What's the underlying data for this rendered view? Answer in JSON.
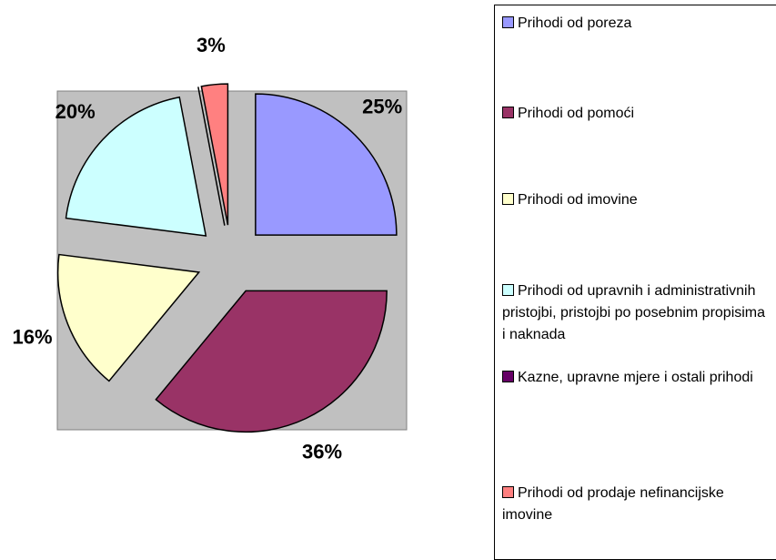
{
  "chart_data": {
    "type": "pie",
    "categories": [
      "Prihodi od poreza",
      "Prihodi od pomoći",
      "Prihodi od imovine",
      "Prihodi od upravnih i administrativnih pristojbi, pristojbi po posebnim propisima i naknada",
      "Kazne, upravne mjere i ostali prihodi",
      "Prihodi od prodaje nefinancijske imovine"
    ],
    "values": [
      25,
      36,
      16,
      20,
      0,
      3
    ],
    "value_labels": [
      "25%",
      "36%",
      "16%",
      "20%",
      null,
      "3%"
    ],
    "colors": [
      "#9999ff",
      "#993366",
      "#ffffcc",
      "#ccffff",
      "#660066",
      "#ff8080"
    ],
    "legend": "right"
  }
}
